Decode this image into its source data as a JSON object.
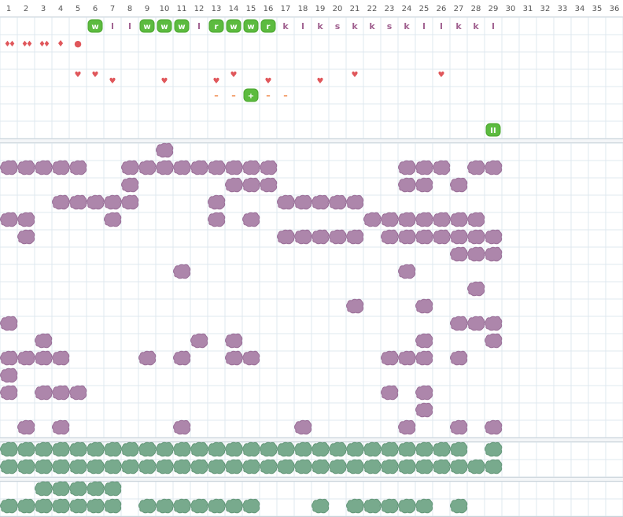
{
  "columns": [
    1,
    2,
    3,
    4,
    5,
    6,
    7,
    8,
    9,
    10,
    11,
    12,
    13,
    14,
    15,
    16,
    17,
    18,
    19,
    20,
    21,
    22,
    23,
    24,
    25,
    26,
    27,
    28,
    29,
    30,
    31,
    32,
    33,
    34,
    35,
    36
  ],
  "top_rows": [
    {
      "cells": [
        {
          "col": 6,
          "text": "w",
          "badge": true
        },
        {
          "col": 7,
          "text": "l",
          "badge": false
        },
        {
          "col": 8,
          "text": "l",
          "badge": false
        },
        {
          "col": 9,
          "text": "w",
          "badge": true
        },
        {
          "col": 10,
          "text": "w",
          "badge": true
        },
        {
          "col": 11,
          "text": "w",
          "badge": true
        },
        {
          "col": 12,
          "text": "l",
          "badge": false
        },
        {
          "col": 13,
          "text": "r",
          "badge": true
        },
        {
          "col": 14,
          "text": "w",
          "badge": true
        },
        {
          "col": 15,
          "text": "w",
          "badge": true
        },
        {
          "col": 16,
          "text": "r",
          "badge": true
        },
        {
          "col": 17,
          "text": "k",
          "badge": false
        },
        {
          "col": 18,
          "text": "l",
          "badge": false
        },
        {
          "col": 19,
          "text": "k",
          "badge": false
        },
        {
          "col": 20,
          "text": "s",
          "badge": false
        },
        {
          "col": 21,
          "text": "k",
          "badge": false
        },
        {
          "col": 22,
          "text": "k",
          "badge": false
        },
        {
          "col": 23,
          "text": "s",
          "badge": false
        },
        {
          "col": 24,
          "text": "k",
          "badge": false
        },
        {
          "col": 25,
          "text": "l",
          "badge": false
        },
        {
          "col": 26,
          "text": "l",
          "badge": false
        },
        {
          "col": 27,
          "text": "k",
          "badge": false
        },
        {
          "col": 28,
          "text": "k",
          "badge": false
        },
        {
          "col": 29,
          "text": "l",
          "badge": false
        }
      ]
    },
    {
      "cells": [
        {
          "col": 1,
          "text": "♦♦",
          "badge": false
        },
        {
          "col": 2,
          "text": "♦♦",
          "badge": false
        },
        {
          "col": 3,
          "text": "♦♦",
          "badge": false
        },
        {
          "col": 4,
          "text": "♦",
          "badge": false
        },
        {
          "col": 5,
          "text": "●",
          "badge": false
        }
      ]
    },
    {
      "cells": []
    },
    {
      "cells": [
        {
          "col": 5,
          "text": "♥",
          "badge": false
        },
        {
          "col": 6,
          "text": "♥",
          "badge": false
        },
        {
          "col": 7,
          "text": "♥",
          "badge": false
        },
        {
          "col": 10,
          "text": "♥",
          "badge": false
        },
        {
          "col": 13,
          "text": "♥",
          "badge": false
        },
        {
          "col": 14,
          "text": "♥",
          "badge": false
        },
        {
          "col": 16,
          "text": "♥",
          "badge": false
        },
        {
          "col": 19,
          "text": "♥",
          "badge": false
        },
        {
          "col": 21,
          "text": "♥",
          "badge": false
        },
        {
          "col": 26,
          "text": "♥",
          "badge": false
        }
      ]
    },
    {
      "cells": [
        {
          "col": 13,
          "text": "–",
          "badge": false
        },
        {
          "col": 14,
          "text": "–",
          "badge": false
        },
        {
          "col": 15,
          "text": "+",
          "badge": true
        },
        {
          "col": 16,
          "text": "–",
          "badge": false
        },
        {
          "col": 17,
          "text": "–",
          "badge": false
        }
      ]
    },
    {
      "cells": []
    },
    {
      "cells": [
        {
          "col": 29,
          "text": "II",
          "badge": true
        }
      ]
    }
  ],
  "purple_rows": [
    [
      10
    ],
    [
      1,
      2,
      3,
      4,
      5,
      8,
      9,
      10,
      11,
      12,
      13,
      14,
      15,
      16,
      24,
      25,
      26,
      28,
      29
    ],
    [
      8,
      14,
      15,
      16,
      24,
      25,
      27
    ],
    [
      4,
      5,
      6,
      7,
      8,
      13,
      17,
      18,
      19,
      20,
      21
    ],
    [
      1,
      2,
      7,
      13,
      15,
      22,
      23,
      24,
      25,
      26,
      27,
      28
    ],
    [
      2,
      17,
      18,
      19,
      20,
      21,
      23,
      24,
      25,
      26,
      27,
      28,
      29
    ],
    [
      27,
      28,
      29
    ],
    [
      11,
      24
    ],
    [
      28
    ],
    [
      21,
      25
    ],
    [
      1,
      27,
      28,
      29
    ],
    [
      3,
      12,
      14,
      25,
      29
    ],
    [
      1,
      2,
      3,
      4,
      9,
      11,
      14,
      15,
      23,
      24,
      25,
      27
    ],
    [
      1
    ],
    [
      1,
      3,
      4,
      5,
      23,
      25
    ],
    [
      25
    ],
    [
      2,
      4,
      11,
      18,
      24,
      27,
      29
    ]
  ],
  "green_rows_a": [
    [
      1,
      2,
      3,
      4,
      5,
      6,
      7,
      8,
      9,
      10,
      11,
      12,
      13,
      14,
      15,
      16,
      17,
      18,
      19,
      20,
      21,
      22,
      23,
      24,
      25,
      26,
      27,
      29
    ],
    [
      1,
      2,
      3,
      4,
      5,
      6,
      7,
      8,
      9,
      10,
      11,
      12,
      13,
      14,
      15,
      16,
      17,
      18,
      19,
      20,
      21,
      22,
      23,
      24,
      25,
      26,
      27,
      28,
      29
    ]
  ],
  "green_rows_b": [
    [
      3,
      4,
      5,
      6,
      7
    ],
    [
      1,
      2,
      3,
      4,
      5,
      6,
      7,
      9,
      10,
      11,
      12,
      13,
      14,
      15,
      19,
      21,
      22,
      23,
      24,
      25,
      27
    ]
  ]
}
